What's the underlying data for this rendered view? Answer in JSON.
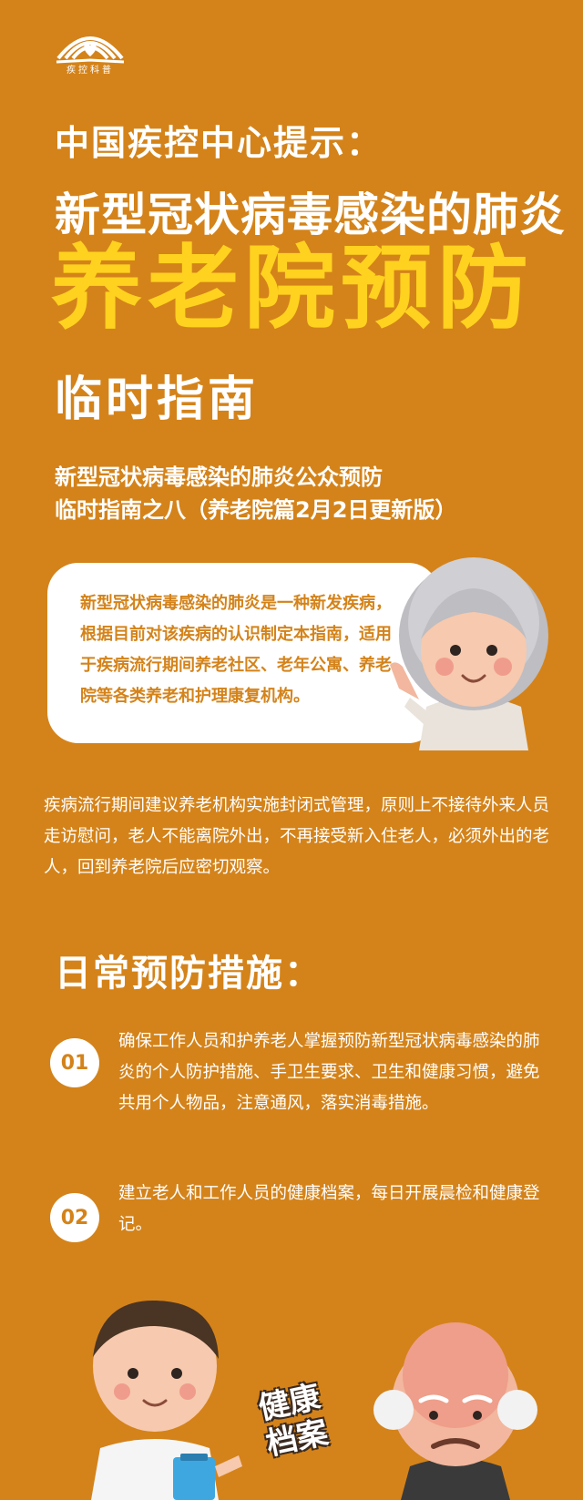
{
  "logo": {
    "text": "疾控科普"
  },
  "header": {
    "line1": "中国疾控中心提示：",
    "line2": "新型冠状病毒感染的肺炎",
    "highlight": "养老院预防",
    "line4": "临时指南"
  },
  "subtitle": {
    "line1": "新型冠状病毒感染的肺炎公众预防",
    "line2": "临时指南之八（养老院篇2月2日更新版）"
  },
  "intro_bubble": {
    "text": "新型冠状病毒感染的肺炎是一种新发疾病，根据目前对该疾病的认识制定本指南，适用于疾病流行期间养老社区、老年公寓、养老院等各类养老和护理康复机构。"
  },
  "paragraph": "疾病流行期间建议养老机构实施封闭式管理，原则上不接待外来人员走访慰问，老人不能离院外出，不再接受新入住老人，必须外出的老人，回到养老院后应密切观察。",
  "section": {
    "title": "日常预防措施："
  },
  "measures": [
    {
      "num": "01",
      "text": "确保工作人员和护养老人掌握预防新型冠状病毒感染的肺炎的个人防护措施、手卫生要求、卫生和健康习惯，避免共用个人物品，注意通风，落实消毒措施。"
    },
    {
      "num": "02",
      "text": "建立老人和工作人员的健康档案，每日开展晨检和健康登记。"
    }
  ],
  "illustration": {
    "stamp_line1": "健康",
    "stamp_line2": "档案"
  },
  "colors": {
    "background": "#D4831A",
    "highlight": "#FFD21F",
    "white": "#FFFFFF"
  }
}
